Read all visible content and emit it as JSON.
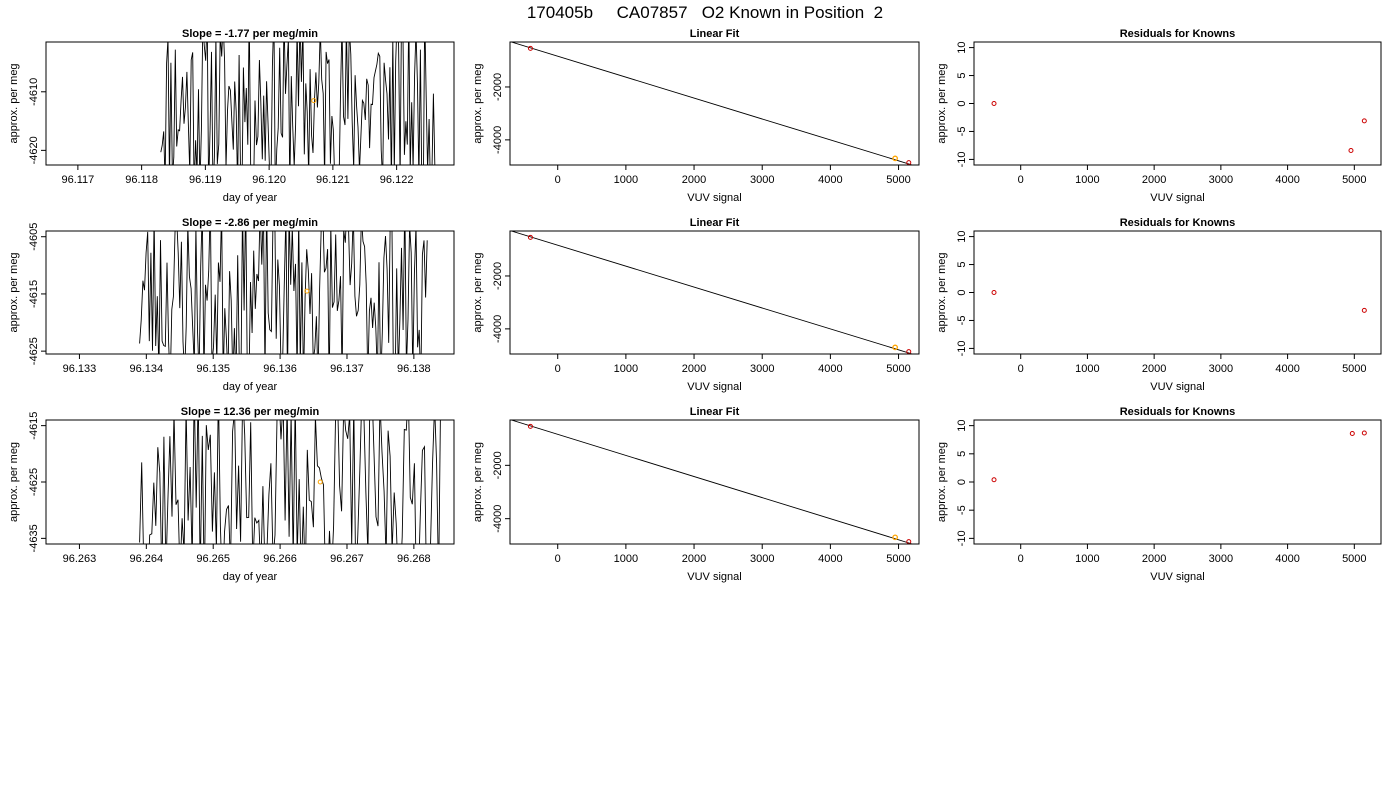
{
  "page_title": "170405b     CA07857   O2 Known in Position  2",
  "colors": {
    "line": "#000000",
    "highlight": "#ffa500",
    "knowns": "#cc0000",
    "fit": "#000000"
  },
  "chart_data": [
    {
      "type": "line",
      "title": "Slope =  -1.77  per meg/min",
      "xlabel": "day of year",
      "ylabel": "approx. per meg",
      "xlim": [
        96.1165,
        96.1229
      ],
      "ylim": [
        -4622.5,
        -4601.5
      ],
      "xticks": [
        "96.117",
        "96.118",
        "96.119",
        "96.120",
        "96.121",
        "96.122"
      ],
      "yticks": [
        "-4610",
        "-4620"
      ],
      "x_range": [
        96.1183,
        96.1226
      ],
      "seed": 11,
      "n": 190,
      "spread": [
        -4628,
        -4596
      ],
      "highlight": {
        "x": 96.1207,
        "y": -4611.5
      }
    },
    {
      "type": "scatter",
      "title": "Linear Fit",
      "xlabel": "VUV signal",
      "ylabel": "approx. per meg",
      "xlim": [
        -700,
        5300
      ],
      "ylim": [
        -4950,
        -300
      ],
      "xticks": [
        "0",
        "1000",
        "2000",
        "3000",
        "4000",
        "5000"
      ],
      "yticks": [
        "-2000",
        "-4000"
      ],
      "fit_line": {
        "x": [
          -680,
          5200
        ],
        "y": [
          -300,
          -4950
        ]
      },
      "knowns": [
        {
          "x": -400,
          "y": -540
        },
        {
          "x": 5150,
          "y": -4860
        }
      ],
      "highlight": [
        {
          "x": 4950,
          "y": -4700
        }
      ]
    },
    {
      "type": "scatter",
      "title": "Residuals for Knowns",
      "xlabel": "VUV signal",
      "ylabel": "approx. per meg",
      "xlim": [
        -700,
        5400
      ],
      "ylim": [
        -11,
        11
      ],
      "xticks": [
        "0",
        "1000",
        "2000",
        "3000",
        "4000",
        "5000"
      ],
      "yticks": [
        "10",
        "5",
        "0",
        "-5",
        "-10"
      ],
      "points": [
        {
          "x": -400,
          "y": 0
        },
        {
          "x": 4950,
          "y": -8.4
        },
        {
          "x": 5150,
          "y": -3.1
        }
      ]
    },
    {
      "type": "line",
      "title": "Slope =  -2.86  per meg/min",
      "xlabel": "day of year",
      "ylabel": "approx. per meg",
      "xlim": [
        96.1325,
        96.1386
      ],
      "ylim": [
        -4625.5,
        -4604
      ],
      "xticks": [
        "96.133",
        "96.134",
        "96.135",
        "96.136",
        "96.137",
        "96.138"
      ],
      "yticks": [
        "-4605",
        "-4615",
        "-4625"
      ],
      "x_range": [
        96.1339,
        96.1382
      ],
      "seed": 23,
      "n": 180,
      "spread": [
        -4632,
        -4598
      ],
      "highlight": {
        "x": 96.1364,
        "y": -4614.5
      }
    },
    {
      "type": "scatter",
      "title": "Linear Fit",
      "xlabel": "VUV signal",
      "ylabel": "approx. per meg",
      "xlim": [
        -700,
        5300
      ],
      "ylim": [
        -4950,
        -300
      ],
      "xticks": [
        "0",
        "1000",
        "2000",
        "3000",
        "4000",
        "5000"
      ],
      "yticks": [
        "-2000",
        "-4000"
      ],
      "fit_line": {
        "x": [
          -680,
          5200
        ],
        "y": [
          -300,
          -4950
        ]
      },
      "knowns": [
        {
          "x": -400,
          "y": -540
        },
        {
          "x": 5150,
          "y": -4860
        }
      ],
      "highlight": [
        {
          "x": 4950,
          "y": -4700
        }
      ]
    },
    {
      "type": "scatter",
      "title": "Residuals for Knowns",
      "xlabel": "VUV signal",
      "ylabel": "approx. per meg",
      "xlim": [
        -700,
        5400
      ],
      "ylim": [
        -11,
        11
      ],
      "xticks": [
        "0",
        "1000",
        "2000",
        "3000",
        "4000",
        "5000"
      ],
      "yticks": [
        "10",
        "5",
        "0",
        "-5",
        "-10"
      ],
      "points": [
        {
          "x": -400,
          "y": 0
        },
        {
          "x": 5150,
          "y": -3.2
        }
      ]
    },
    {
      "type": "line",
      "title": "Slope =  12.36  per meg/min",
      "xlabel": "day of year",
      "ylabel": "approx. per meg",
      "xlim": [
        96.2625,
        96.2686
      ],
      "ylim": [
        -4636,
        -4614
      ],
      "xticks": [
        "96.263",
        "96.264",
        "96.265",
        "96.266",
        "96.267",
        "96.268"
      ],
      "yticks": [
        "-4615",
        "-4625",
        "-4635"
      ],
      "x_range": [
        96.2639,
        96.2684
      ],
      "seed": 37,
      "n": 150,
      "spread": [
        -4645,
        -4608
      ],
      "highlight": {
        "x": 96.2666,
        "y": -4625
      }
    },
    {
      "type": "scatter",
      "title": "Linear Fit",
      "xlabel": "VUV signal",
      "ylabel": "approx. per meg",
      "xlim": [
        -700,
        5300
      ],
      "ylim": [
        -4950,
        -300
      ],
      "xticks": [
        "0",
        "1000",
        "2000",
        "3000",
        "4000",
        "5000"
      ],
      "yticks": [
        "-2000",
        "-4000"
      ],
      "fit_line": {
        "x": [
          -680,
          5200
        ],
        "y": [
          -300,
          -4950
        ]
      },
      "knowns": [
        {
          "x": -400,
          "y": -540
        },
        {
          "x": 5150,
          "y": -4860
        }
      ],
      "highlight": [
        {
          "x": 4950,
          "y": -4700
        }
      ]
    },
    {
      "type": "scatter",
      "title": "Residuals for Knowns",
      "xlabel": "VUV signal",
      "ylabel": "approx. per meg",
      "xlim": [
        -700,
        5400
      ],
      "ylim": [
        -11,
        11
      ],
      "xticks": [
        "0",
        "1000",
        "2000",
        "3000",
        "4000",
        "5000"
      ],
      "yticks": [
        "10",
        "5",
        "0",
        "-5",
        "-10"
      ],
      "points": [
        {
          "x": -400,
          "y": 0.4
        },
        {
          "x": 4970,
          "y": 8.6
        },
        {
          "x": 5150,
          "y": 8.7
        }
      ]
    }
  ]
}
